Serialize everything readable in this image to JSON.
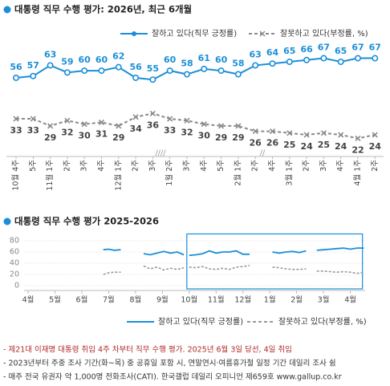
{
  "chart_data": [
    {
      "type": "line",
      "title": "대통령 직무 수행 평가: 2026년, 최근 6개월",
      "categories": [
        "10월 4주",
        "5주",
        "11월 1주",
        "2주",
        "3주",
        "4주",
        "12월 1주",
        "2주",
        "3주",
        "1월 2주",
        "3주",
        "4주",
        "5주",
        "2월 1주",
        "2주",
        "4주",
        "3월 1주",
        "2주",
        "3주",
        "4주",
        "4월 1주",
        "2주"
      ],
      "series": [
        {
          "name": "잘하고 있다(직무 긍정률)",
          "color": "#1a8fd8",
          "values": [
            56,
            57,
            63,
            59,
            60,
            60,
            62,
            56,
            55,
            60,
            58,
            61,
            60,
            58,
            63,
            64,
            65,
            66,
            67,
            65,
            67,
            67
          ]
        },
        {
          "name": "잘못하고 있다(부정률, %)",
          "color": "#8a8a8a",
          "values": [
            33,
            33,
            29,
            32,
            30,
            31,
            29,
            34,
            36,
            33,
            32,
            30,
            29,
            29,
            26,
            26,
            25,
            24,
            25,
            24,
            22,
            24
          ]
        }
      ],
      "annotations": [
        "////",
        "//"
      ]
    },
    {
      "type": "line",
      "title": "대통령 직무 수행 평가 2025-2026",
      "x": [
        2.8,
        3.0,
        3.2,
        3.45,
        4.0,
        4.3,
        4.55,
        4.8,
        5.05,
        5.3,
        5.55,
        5.8,
        5.9,
        6.0,
        6.25,
        6.5,
        6.75,
        7.0,
        7.25,
        7.5,
        7.75,
        8.0,
        8.25,
        8.7,
        9.1,
        9.35,
        9.6,
        9.85,
        10.1,
        10.35,
        10.55,
        10.75,
        11.0,
        11.25,
        11.5,
        11.75,
        12.0,
        12.25,
        12.5
      ],
      "series": [
        {
          "name": "잘하고 있다(직무 긍정률)",
          "color": "#1a8fd8",
          "values": [
            64,
            65,
            63,
            64,
            null,
            57,
            55,
            58,
            61,
            58,
            60,
            55,
            null,
            54,
            55,
            57,
            62,
            58,
            60,
            60,
            62,
            56,
            56,
            null,
            60,
            58,
            60,
            61,
            59,
            62,
            null,
            63,
            64,
            65,
            66,
            67,
            65,
            67,
            67
          ]
        },
        {
          "name": "잘못하고 있다(부정률, %)",
          "color": "#9a9a9a",
          "values": [
            20,
            23,
            24,
            24,
            null,
            35,
            30,
            33,
            28,
            31,
            29,
            32,
            null,
            33,
            32,
            34,
            30,
            29,
            31,
            29,
            33,
            34,
            36,
            null,
            33,
            32,
            30,
            29,
            29,
            30,
            null,
            26,
            26,
            25,
            24,
            25,
            24,
            22,
            24
          ]
        }
      ],
      "xlim": [
        -0.15,
        12.55
      ],
      "xticks": [
        {
          "value": 0,
          "label": "4월"
        },
        {
          "value": 1,
          "label": "5월"
        },
        {
          "value": 2,
          "label": "6월"
        },
        {
          "value": 3,
          "label": "7월"
        },
        {
          "value": 4,
          "label": "8월"
        },
        {
          "value": 5,
          "label": "9월"
        },
        {
          "value": 6,
          "label": "10월"
        },
        {
          "value": 7,
          "label": "11월"
        },
        {
          "value": 8,
          "label": "12월"
        },
        {
          "value": 9,
          "label": "1월"
        },
        {
          "value": 10,
          "label": "2월"
        },
        {
          "value": 11,
          "label": "3월"
        },
        {
          "value": 12,
          "label": "4월"
        }
      ],
      "ylim": [
        0,
        85
      ],
      "yticks": [
        0,
        20,
        40,
        60,
        80
      ],
      "grid": true,
      "highlight": [
        6.0,
        12.45
      ]
    }
  ],
  "footnotes": [
    "- 제21대 이재명 대통령 취임 4주 차부터 직무 수행 평가. 2025년 6월 3일 당선, 4일 취임",
    "- 2023년부터 주중 조사 기간(화~목) 중 공휴일 포함 시, 연말연시·여름휴가철 일정 기간 데일리 조사 쉼",
    "- 매주 전국 유권자 약 1,000명 전화조사(CATI). 한국갤럽 데일리 오피니언 제659호 www.gallup.co.kr"
  ]
}
